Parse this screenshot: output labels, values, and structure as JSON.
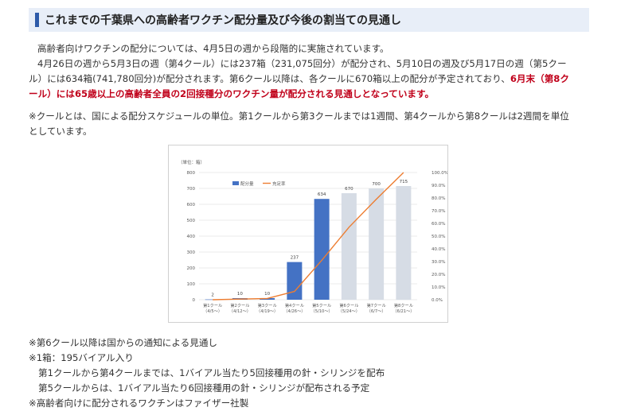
{
  "heading": {
    "title": "これまでの千葉県への高齢者ワクチン配分量及び今後の割当ての見通し"
  },
  "body": {
    "p1": "高齢者向けワクチンの配分については、4月5日の週から段階的に実施されています。",
    "p2_l1": "4月26日の週から5月3日の週（第4クール）には237箱（231,075回分）が配分され、5月10日の週及び5月17日の週（第5クー",
    "p2_l2": "ル）には634箱(741,780回分)が配分されます。第6クール以降は、各クールに670箱以上の配分が予定されており、",
    "p2_l2_red": "6月末（第8ク",
    "p2_l3_red": "ール）には65歳以上の高齢者全員の2回接種分のワクチン量が配分される見通しとなっています。",
    "p3_l1": "※クールとは、国による配分スケジュールの単位。第1クールから第3クールまでは1週間、第4クールから第8クールは2週間を単位",
    "p3_l2": "としています。"
  },
  "colors": {
    "actual_bar": "#4472c4",
    "planned_bar": "#d6dce5",
    "line": "#ed7d31",
    "heading_bg": "#e8eef8",
    "heading_accent": "#2e5aa8",
    "emphasis": "#c0001a"
  },
  "chart_data": {
    "type": "bar",
    "unit_label": "（単位：箱）",
    "categories": [
      [
        "第1クール",
        "（4/5～）"
      ],
      [
        "第2クール",
        "（4/12～）"
      ],
      [
        "第3クール",
        "（4/19～）"
      ],
      [
        "第4クール",
        "（4/26～）"
      ],
      [
        "第5クール",
        "（5/10～）"
      ],
      [
        "第6クール",
        "（5/24～）"
      ],
      [
        "第7クール",
        "（6/7～）"
      ],
      [
        "第8クール",
        "（6/21～）"
      ]
    ],
    "series": [
      {
        "name": "配分量",
        "type": "bar",
        "values": [
          2,
          10,
          10,
          237,
          634,
          670,
          700,
          715
        ],
        "planned_from_index": 5
      },
      {
        "name": "充足率",
        "type": "line",
        "axis": "right",
        "values": [
          0,
          0.5,
          1,
          6.5,
          31,
          57,
          79,
          100
        ]
      }
    ],
    "y_left": {
      "min": 0,
      "max": 800,
      "ticks": [
        0,
        100,
        200,
        300,
        400,
        500,
        600,
        700,
        800
      ]
    },
    "y_right": {
      "min": 0,
      "max": 100,
      "ticks": [
        "0.0%",
        "10.0%",
        "20.0%",
        "30.0%",
        "40.0%",
        "50.0%",
        "60.0%",
        "70.0%",
        "80.0%",
        "90.0%",
        "100.0%"
      ]
    },
    "legend_position": "top-center",
    "grid": true
  },
  "notes": [
    {
      "text": "※第6クール以降は国からの通知による見通し",
      "indent": false
    },
    {
      "text": "※1箱：195バイアル入り",
      "indent": false
    },
    {
      "text": "第1クールから第4クールまでは、1バイアル当たり5回接種用の針・シリンジを配布",
      "indent": true
    },
    {
      "text": "第5クールからは、1バイアル当たり6回接種用の針・シリンジが配布される予定",
      "indent": true
    },
    {
      "text": "※高齢者向けに配分されるワクチンはファイザー社製",
      "indent": false
    }
  ]
}
